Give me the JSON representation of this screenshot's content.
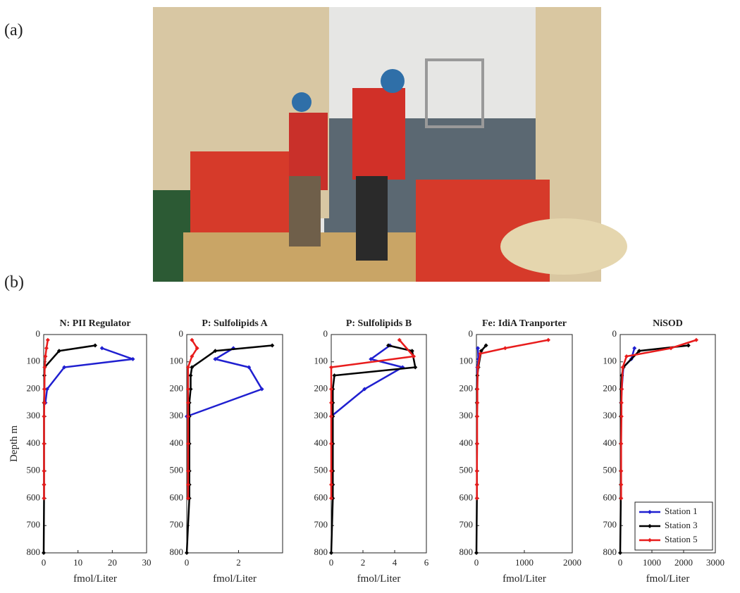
{
  "panel_labels": [
    "(a)",
    "(b)"
  ],
  "chart_data": [
    {
      "type": "line",
      "title": "N: PII Regulator",
      "xlabel": "fmol/Liter",
      "ylabel": "Depth m",
      "xlim": [
        0,
        30
      ],
      "xticks": [
        0,
        10,
        20,
        30
      ],
      "ylim": [
        0,
        800
      ],
      "yticks": [
        0,
        100,
        200,
        300,
        400,
        500,
        600,
        700,
        800
      ],
      "y_inverted": true,
      "series": [
        {
          "color": "#1f1fd0",
          "x": [
            17,
            26,
            6,
            1,
            0.5
          ],
          "y": [
            50,
            90,
            120,
            200,
            250
          ]
        },
        {
          "color": "#000000",
          "x": [
            15,
            4.5,
            0.3,
            0.2,
            0.2,
            0.1,
            0.1,
            0.1,
            0.1,
            0.1,
            0.1,
            0
          ],
          "y": [
            40,
            60,
            120,
            150,
            200,
            250,
            300,
            400,
            500,
            550,
            600,
            800
          ]
        },
        {
          "color": "#e81c1c",
          "x": [
            1.2,
            0.8,
            0.5,
            0.3,
            0.2,
            0.2,
            0.1,
            0.1,
            0.1,
            0.1,
            0.1
          ],
          "y": [
            20,
            50,
            80,
            120,
            200,
            250,
            300,
            400,
            500,
            550,
            600
          ]
        }
      ]
    },
    {
      "type": "line",
      "title": "P: Sulfolipids A",
      "xlabel": "fmol/Liter",
      "xlim": [
        0,
        3.7
      ],
      "xticks": [
        0,
        2
      ],
      "ylim": [
        0,
        800
      ],
      "yticks": [
        0,
        100,
        200,
        300,
        400,
        500,
        600,
        700,
        800
      ],
      "y_inverted": true,
      "series": [
        {
          "color": "#1f1fd0",
          "x": [
            1.8,
            1.1,
            2.4,
            2.9,
            0
          ],
          "y": [
            50,
            90,
            120,
            200,
            300
          ]
        },
        {
          "color": "#000000",
          "x": [
            3.3,
            1.1,
            0.2,
            0.15,
            0.15,
            0.1,
            0.1,
            0.1,
            0.1,
            0.1,
            0.1,
            0
          ],
          "y": [
            40,
            60,
            120,
            150,
            200,
            250,
            300,
            400,
            500,
            550,
            600,
            800
          ]
        },
        {
          "color": "#e81c1c",
          "x": [
            0.2,
            0.4,
            0.2,
            0.05,
            0.05,
            0.05,
            0.05,
            0.05,
            0.05,
            0.05,
            0.05
          ],
          "y": [
            20,
            50,
            80,
            120,
            200,
            250,
            300,
            400,
            500,
            550,
            600
          ]
        }
      ]
    },
    {
      "type": "line",
      "title": "P: Sulfolipids B",
      "xlabel": "fmol/Liter",
      "xlim": [
        0,
        6
      ],
      "xticks": [
        0,
        2,
        4,
        6
      ],
      "ylim": [
        0,
        800
      ],
      "yticks": [
        0,
        100,
        200,
        300,
        400,
        500,
        600,
        700,
        800
      ],
      "y_inverted": true,
      "series": [
        {
          "color": "#1f1fd0",
          "x": [
            3.7,
            2.5,
            4.5,
            2.1,
            0
          ],
          "y": [
            40,
            90,
            120,
            200,
            300
          ]
        },
        {
          "color": "#000000",
          "x": [
            3.6,
            5.1,
            5.3,
            0.2,
            0.1,
            0.1,
            0.1,
            0.1,
            0.1,
            0.1,
            0.1,
            0
          ],
          "y": [
            40,
            60,
            120,
            150,
            200,
            250,
            300,
            400,
            500,
            550,
            600,
            800
          ]
        },
        {
          "color": "#e81c1c",
          "x": [
            4.3,
            5.2,
            0,
            0,
            0,
            0,
            0,
            0,
            0,
            0
          ],
          "y": [
            20,
            80,
            120,
            200,
            250,
            300,
            400,
            500,
            550,
            600
          ]
        }
      ]
    },
    {
      "type": "line",
      "title": "Fe: IdiA Tranporter",
      "xlabel": "fmol/Liter",
      "xlim": [
        0,
        2000
      ],
      "xticks": [
        0,
        1000,
        2000
      ],
      "ylim": [
        0,
        800
      ],
      "yticks": [
        0,
        100,
        200,
        300,
        400,
        500,
        600,
        700,
        800
      ],
      "y_inverted": true,
      "series": [
        {
          "color": "#1f1fd0",
          "x": [
            30,
            40,
            20,
            10
          ],
          "y": [
            50,
            90,
            120,
            200
          ]
        },
        {
          "color": "#000000",
          "x": [
            200,
            100,
            40,
            20,
            10,
            10,
            10,
            10,
            10,
            10,
            10,
            0
          ],
          "y": [
            40,
            60,
            120,
            150,
            200,
            250,
            300,
            400,
            500,
            550,
            600,
            800
          ]
        },
        {
          "color": "#e81c1c",
          "x": [
            1500,
            600,
            80,
            30,
            20,
            20,
            15,
            15,
            10,
            10,
            10
          ],
          "y": [
            20,
            50,
            70,
            120,
            200,
            250,
            300,
            400,
            500,
            550,
            600
          ]
        }
      ]
    },
    {
      "type": "line",
      "title": "NiSOD",
      "xlabel": "fmol/Liter",
      "xlim": [
        0,
        3000
      ],
      "xticks": [
        0,
        1000,
        2000,
        3000
      ],
      "ylim": [
        0,
        800
      ],
      "yticks": [
        0,
        100,
        200,
        300,
        400,
        500,
        600,
        700,
        800
      ],
      "y_inverted": true,
      "legend": "lower right",
      "series": [
        {
          "name": "Station 1",
          "color": "#1f1fd0",
          "x": [
            450,
            350,
            100,
            50,
            30
          ],
          "y": [
            50,
            90,
            120,
            200,
            250
          ]
        },
        {
          "name": "Station 3",
          "color": "#000000",
          "x": [
            2150,
            600,
            100,
            50,
            30,
            30,
            20,
            20,
            20,
            20,
            20,
            0
          ],
          "y": [
            40,
            60,
            120,
            150,
            200,
            250,
            300,
            400,
            500,
            550,
            600,
            800
          ]
        },
        {
          "name": "Station 5",
          "color": "#e81c1c",
          "x": [
            2400,
            1600,
            200,
            80,
            50,
            40,
            40,
            30,
            30,
            30,
            30
          ],
          "y": [
            20,
            50,
            80,
            120,
            200,
            250,
            300,
            400,
            500,
            550,
            600
          ]
        }
      ]
    }
  ]
}
